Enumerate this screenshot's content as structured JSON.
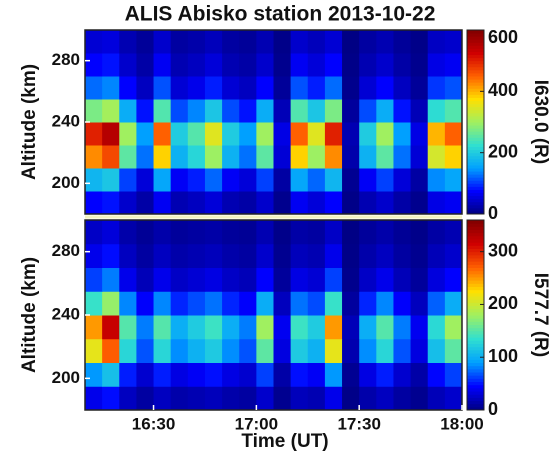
{
  "chart_data": [
    {
      "type": "heatmap",
      "title": "ALIS Abisko station 2013-10-22",
      "y_label": "Altitude (km)",
      "colorbar_label": "I630.0 (R)",
      "x": [
        972.5,
        977.5,
        982.5,
        987.5,
        992.5,
        997.5,
        1002.5,
        1007.5,
        1012.5,
        1017.5,
        1022.5,
        1027.5,
        1032.5,
        1037.5,
        1042.5,
        1047.5,
        1052.5,
        1057.5,
        1062.5,
        1067.5,
        1072.5,
        1077.5
      ],
      "y": [
        187.5,
        202.5,
        217.5,
        232.5,
        247.5,
        262.5,
        277.5,
        292.5
      ],
      "z": [
        [
          75,
          83,
          45,
          23,
          68,
          30,
          38,
          53,
          30,
          23,
          45,
          9,
          68,
          53,
          75,
          5,
          30,
          45,
          23,
          9,
          60,
          68
        ],
        [
          175,
          193,
          105,
          53,
          158,
          70,
          88,
          123,
          70,
          53,
          105,
          21,
          158,
          123,
          175,
          11,
          70,
          105,
          53,
          21,
          140,
          158
        ],
        [
          425,
          468,
          255,
          128,
          383,
          170,
          213,
          298,
          170,
          128,
          255,
          51,
          383,
          298,
          425,
          26,
          170,
          255,
          128,
          51,
          340,
          383
        ],
        [
          500,
          550,
          300,
          150,
          450,
          200,
          250,
          350,
          200,
          150,
          300,
          60,
          450,
          350,
          500,
          30,
          200,
          300,
          150,
          60,
          400,
          450
        ],
        [
          275,
          303,
          165,
          83,
          248,
          110,
          138,
          193,
          110,
          83,
          165,
          33,
          248,
          193,
          275,
          17,
          110,
          165,
          83,
          33,
          220,
          248
        ],
        [
          125,
          138,
          75,
          38,
          113,
          50,
          63,
          88,
          50,
          38,
          75,
          15,
          113,
          88,
          125,
          8,
          50,
          75,
          38,
          15,
          100,
          113
        ],
        [
          75,
          83,
          45,
          23,
          68,
          30,
          38,
          53,
          30,
          23,
          45,
          9,
          68,
          53,
          75,
          5,
          30,
          45,
          23,
          9,
          60,
          68
        ],
        [
          50,
          55,
          30,
          15,
          45,
          20,
          25,
          35,
          20,
          15,
          30,
          6,
          45,
          35,
          50,
          3,
          20,
          30,
          15,
          6,
          40,
          45
        ]
      ],
      "xlim": [
        970,
        1080
      ],
      "ylim": [
        180,
        300
      ],
      "yticks": [
        200,
        240,
        280
      ],
      "clim": [
        0,
        600
      ],
      "cticks": [
        0,
        200,
        400,
        600
      ],
      "colorscale": [
        "#00007f",
        "#0000ff",
        "#00a0ff",
        "#30e0d0",
        "#a0f060",
        "#ffe000",
        "#ff6000",
        "#d00000",
        "#800000"
      ]
    },
    {
      "type": "heatmap",
      "y_label": "Altitude (km)",
      "colorbar_label": "I577.7 (R)",
      "x_label": "Time (UT)",
      "x": [
        972.5,
        977.5,
        982.5,
        987.5,
        992.5,
        997.5,
        1002.5,
        1007.5,
        1012.5,
        1017.5,
        1022.5,
        1027.5,
        1032.5,
        1037.5,
        1042.5,
        1047.5,
        1052.5,
        1057.5,
        1062.5,
        1067.5,
        1072.5,
        1077.5
      ],
      "y": [
        187.5,
        202.5,
        217.5,
        232.5,
        247.5,
        262.5,
        277.5,
        292.5
      ],
      "z": [
        [
          38,
          48,
          23,
          12,
          23,
          15,
          18,
          21,
          15,
          12,
          27,
          6,
          21,
          18,
          38,
          3,
          15,
          23,
          12,
          6,
          20,
          27
        ],
        [
          88,
          112,
          53,
          28,
          53,
          35,
          42,
          49,
          35,
          28,
          63,
          14,
          49,
          42,
          88,
          7,
          35,
          53,
          28,
          14,
          46,
          63
        ],
        [
          213,
          272,
          128,
          68,
          128,
          85,
          102,
          119,
          85,
          68,
          153,
          34,
          119,
          102,
          213,
          17,
          85,
          128,
          68,
          34,
          111,
          153
        ],
        [
          250,
          320,
          150,
          80,
          150,
          100,
          120,
          140,
          100,
          80,
          180,
          40,
          140,
          120,
          250,
          20,
          100,
          150,
          80,
          40,
          130,
          180
        ],
        [
          138,
          176,
          83,
          44,
          83,
          55,
          66,
          77,
          55,
          44,
          99,
          22,
          77,
          66,
          138,
          11,
          55,
          83,
          44,
          22,
          72,
          99
        ],
        [
          63,
          80,
          38,
          20,
          38,
          25,
          30,
          35,
          25,
          20,
          45,
          10,
          35,
          30,
          63,
          5,
          25,
          38,
          20,
          10,
          33,
          45
        ],
        [
          38,
          48,
          23,
          12,
          23,
          15,
          18,
          21,
          15,
          12,
          27,
          6,
          21,
          18,
          38,
          3,
          15,
          23,
          12,
          6,
          20,
          27
        ],
        [
          25,
          32,
          15,
          8,
          15,
          10,
          12,
          14,
          10,
          8,
          18,
          4,
          14,
          12,
          25,
          2,
          10,
          15,
          8,
          4,
          13,
          18
        ]
      ],
      "xlim": [
        970,
        1080
      ],
      "ylim": [
        180,
        300
      ],
      "yticks": [
        200,
        240,
        280
      ],
      "xticks": [
        {
          "value": 990,
          "label": "16:30"
        },
        {
          "value": 1020,
          "label": "17:00"
        },
        {
          "value": 1050,
          "label": "17:30"
        },
        {
          "value": 1080,
          "label": "18:00"
        }
      ],
      "clim": [
        0,
        360
      ],
      "cticks": [
        0,
        100,
        200,
        300
      ],
      "colorscale": [
        "#00007f",
        "#0000ff",
        "#00a0ff",
        "#30e0d0",
        "#a0f060",
        "#ffe000",
        "#ff6000",
        "#d00000",
        "#800000"
      ]
    }
  ]
}
